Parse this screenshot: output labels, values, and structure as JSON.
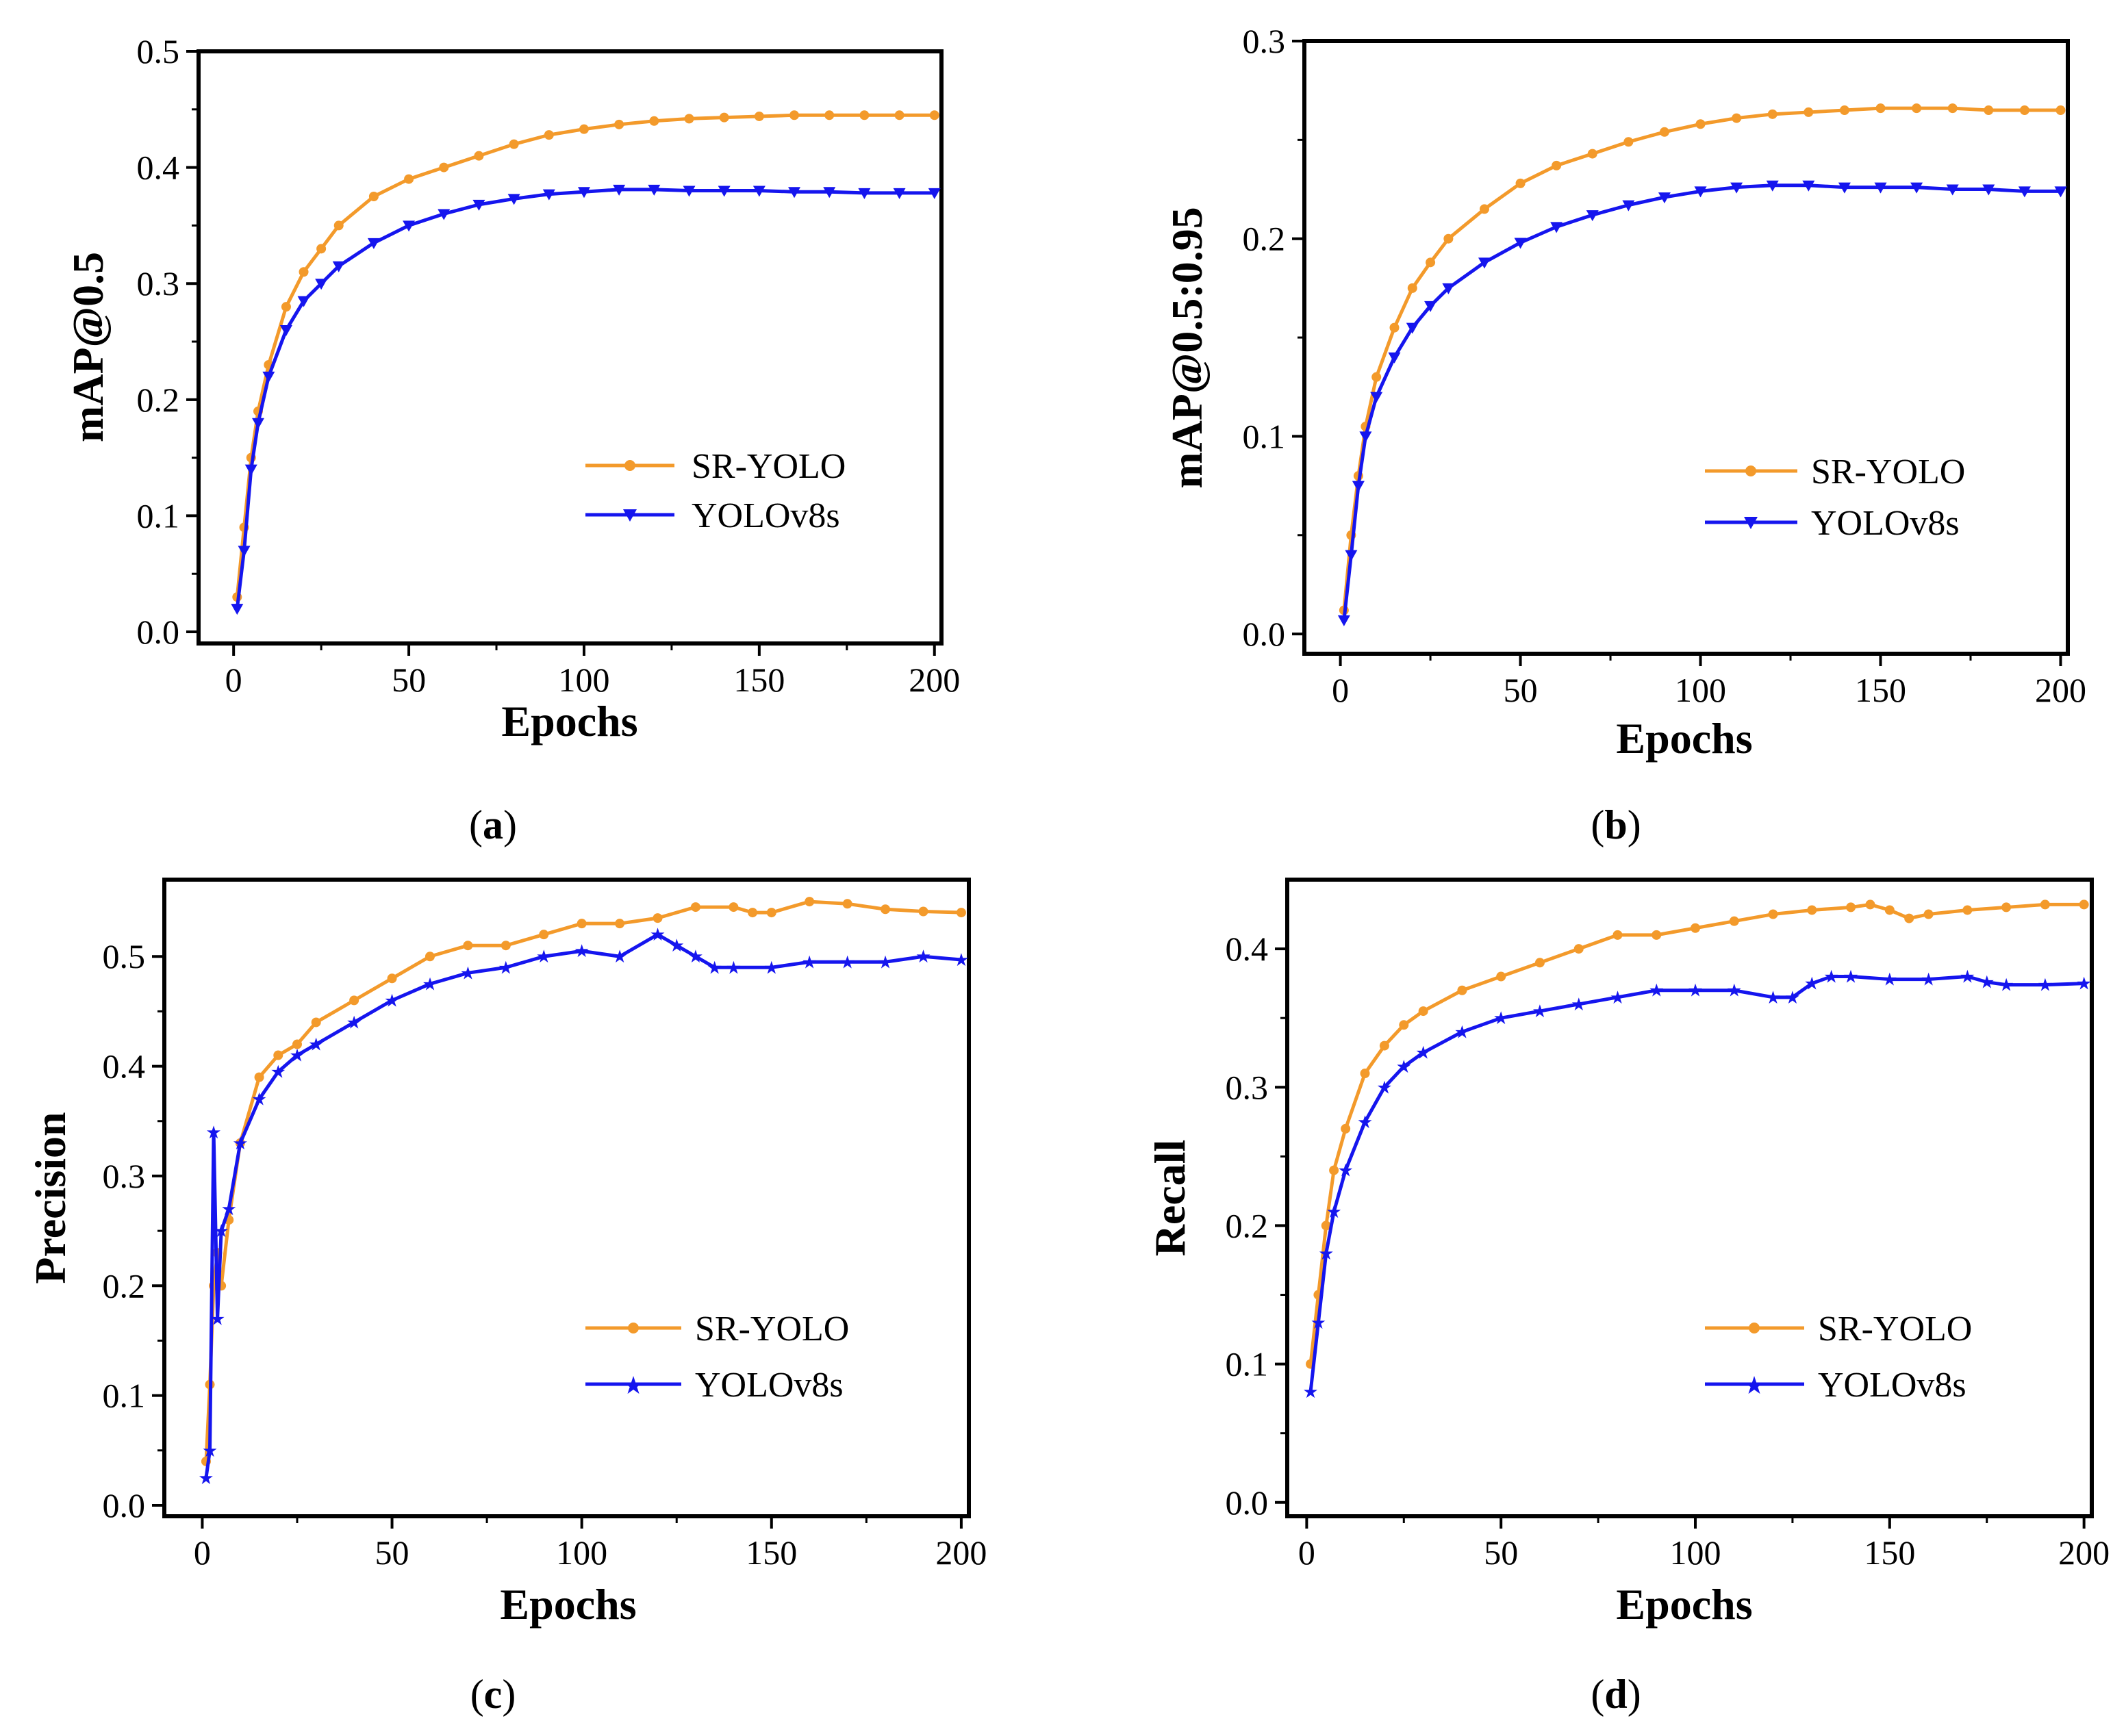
{
  "figure": {
    "panels": [
      "a",
      "b",
      "c",
      "d"
    ]
  },
  "colors": {
    "sr_yolo": "#f39a2b",
    "yolov8s": "#1515ee",
    "early_green": "#2a8a2a"
  },
  "chart_data": [
    {
      "id": "a",
      "type": "line",
      "panel_label": "a",
      "title": "",
      "xlabel": "Epochs",
      "ylabel": "mAP@0.5",
      "xlim": [
        -10,
        202
      ],
      "ylim": [
        -0.01,
        0.5
      ],
      "xticks": [
        0,
        50,
        100,
        150,
        200
      ],
      "xtick_labels": [
        "0",
        "50",
        "100",
        "150",
        "200"
      ],
      "yticks": [
        0.0,
        0.1,
        0.2,
        0.3,
        0.4,
        0.5
      ],
      "ytick_labels": [
        "0.0",
        "0.1",
        "0.2",
        "0.3",
        "0.4",
        "0.5"
      ],
      "legend": [
        "SR-YOLO",
        "YOLOv8s"
      ],
      "legend_position": "center-right",
      "series": [
        {
          "name": "SR-YOLO",
          "marker": "circle",
          "x": [
            1,
            3,
            5,
            7,
            10,
            15,
            20,
            25,
            30,
            40,
            50,
            60,
            70,
            80,
            90,
            100,
            110,
            120,
            130,
            140,
            150,
            160,
            170,
            180,
            190,
            200
          ],
          "y": [
            0.03,
            0.09,
            0.15,
            0.19,
            0.23,
            0.28,
            0.31,
            0.33,
            0.35,
            0.375,
            0.39,
            0.4,
            0.41,
            0.42,
            0.428,
            0.433,
            0.437,
            0.44,
            0.442,
            0.443,
            0.444,
            0.445,
            0.445,
            0.445,
            0.445,
            0.445
          ]
        },
        {
          "name": "YOLOv8s",
          "marker": "triangle-down",
          "x": [
            1,
            3,
            5,
            7,
            10,
            15,
            20,
            25,
            30,
            40,
            50,
            60,
            70,
            80,
            90,
            100,
            110,
            120,
            130,
            140,
            150,
            160,
            170,
            180,
            190,
            200
          ],
          "y": [
            0.02,
            0.07,
            0.14,
            0.18,
            0.22,
            0.26,
            0.285,
            0.3,
            0.315,
            0.335,
            0.35,
            0.36,
            0.368,
            0.373,
            0.377,
            0.379,
            0.381,
            0.381,
            0.38,
            0.38,
            0.38,
            0.379,
            0.379,
            0.378,
            0.378,
            0.378
          ]
        }
      ]
    },
    {
      "id": "b",
      "type": "line",
      "panel_label": "b",
      "title": "",
      "xlabel": "Epochs",
      "ylabel": "mAP@0.5:0.95",
      "xlim": [
        -10,
        202
      ],
      "ylim": [
        -0.01,
        0.3
      ],
      "xticks": [
        0,
        50,
        100,
        150,
        200
      ],
      "xtick_labels": [
        "0",
        "50",
        "100",
        "150",
        "200"
      ],
      "yticks": [
        0.0,
        0.1,
        0.2,
        0.3
      ],
      "ytick_labels": [
        "0.0",
        "0.1",
        "0.2",
        "0.3"
      ],
      "legend": [
        "SR-YOLO",
        "YOLOv8s"
      ],
      "legend_position": "center-right",
      "series": [
        {
          "name": "SR-YOLO",
          "marker": "circle",
          "x": [
            1,
            3,
            5,
            7,
            10,
            15,
            20,
            25,
            30,
            40,
            50,
            60,
            70,
            80,
            90,
            100,
            110,
            120,
            130,
            140,
            150,
            160,
            170,
            180,
            190,
            200
          ],
          "y": [
            0.012,
            0.05,
            0.08,
            0.105,
            0.13,
            0.155,
            0.175,
            0.188,
            0.2,
            0.215,
            0.228,
            0.237,
            0.243,
            0.249,
            0.254,
            0.258,
            0.261,
            0.263,
            0.264,
            0.265,
            0.266,
            0.266,
            0.266,
            0.265,
            0.265,
            0.265
          ]
        },
        {
          "name": "YOLOv8s",
          "marker": "triangle-down",
          "x": [
            1,
            3,
            5,
            7,
            10,
            15,
            20,
            25,
            30,
            40,
            50,
            60,
            70,
            80,
            90,
            100,
            110,
            120,
            130,
            140,
            150,
            160,
            170,
            180,
            190,
            200
          ],
          "y": [
            0.007,
            0.04,
            0.075,
            0.1,
            0.12,
            0.14,
            0.155,
            0.166,
            0.175,
            0.188,
            0.198,
            0.206,
            0.212,
            0.217,
            0.221,
            0.224,
            0.226,
            0.227,
            0.227,
            0.226,
            0.226,
            0.226,
            0.225,
            0.225,
            0.224,
            0.224
          ]
        }
      ]
    },
    {
      "id": "c",
      "type": "line",
      "panel_label": "c",
      "title": "",
      "xlabel": "Epochs",
      "ylabel": "Precision",
      "xlim": [
        -10,
        202
      ],
      "ylim": [
        -0.01,
        0.57
      ],
      "xticks": [
        0,
        50,
        100,
        150,
        200
      ],
      "xtick_labels": [
        "0",
        "50",
        "100",
        "150",
        "200"
      ],
      "yticks": [
        0.0,
        0.1,
        0.2,
        0.3,
        0.4,
        0.5
      ],
      "ytick_labels": [
        "0.0",
        "0.1",
        "0.2",
        "0.3",
        "0.4",
        "0.5"
      ],
      "legend": [
        "SR-YOLO",
        "YOLOv8s"
      ],
      "legend_position": "lower-right",
      "series": [
        {
          "name": "SR-YOLO",
          "marker": "circle",
          "x": [
            1,
            2,
            3,
            4,
            5,
            7,
            10,
            15,
            20,
            25,
            30,
            40,
            50,
            60,
            70,
            80,
            90,
            100,
            110,
            120,
            130,
            140,
            145,
            150,
            160,
            170,
            180,
            190,
            200
          ],
          "y": [
            0.04,
            0.11,
            0.2,
            0.23,
            0.2,
            0.26,
            0.33,
            0.39,
            0.41,
            0.42,
            0.44,
            0.46,
            0.48,
            0.5,
            0.51,
            0.51,
            0.52,
            0.53,
            0.53,
            0.535,
            0.545,
            0.545,
            0.54,
            0.54,
            0.55,
            0.548,
            0.543,
            0.541,
            0.54
          ]
        },
        {
          "name": "YOLOv8s",
          "marker": "star",
          "x": [
            1,
            2,
            3,
            4,
            5,
            7,
            10,
            15,
            20,
            25,
            30,
            40,
            50,
            60,
            70,
            80,
            90,
            100,
            110,
            120,
            125,
            130,
            135,
            140,
            150,
            160,
            170,
            180,
            190,
            200
          ],
          "y": [
            0.025,
            0.05,
            0.34,
            0.17,
            0.25,
            0.27,
            0.33,
            0.37,
            0.395,
            0.41,
            0.42,
            0.44,
            0.46,
            0.475,
            0.485,
            0.49,
            0.5,
            0.505,
            0.5,
            0.52,
            0.51,
            0.5,
            0.49,
            0.49,
            0.49,
            0.495,
            0.495,
            0.495,
            0.5,
            0.497
          ]
        }
      ]
    },
    {
      "id": "d",
      "type": "line",
      "panel_label": "d",
      "title": "",
      "xlabel": "Epochs",
      "ylabel": "Recall",
      "xlim": [
        -5,
        202
      ],
      "ylim": [
        -0.01,
        0.45
      ],
      "xticks": [
        0,
        50,
        100,
        150,
        200
      ],
      "xtick_labels": [
        "0",
        "50",
        "100",
        "150",
        "200"
      ],
      "yticks": [
        0.0,
        0.1,
        0.2,
        0.3,
        0.4
      ],
      "ytick_labels": [
        "0.0",
        "0.1",
        "0.2",
        "0.3",
        "0.4"
      ],
      "legend": [
        "SR-YOLO",
        "YOLOv8s"
      ],
      "legend_position": "lower-right",
      "series": [
        {
          "name": "SR-YOLO",
          "marker": "circle",
          "x": [
            1,
            3,
            5,
            7,
            10,
            15,
            20,
            25,
            30,
            40,
            50,
            60,
            70,
            80,
            90,
            100,
            110,
            120,
            130,
            140,
            145,
            150,
            155,
            160,
            170,
            180,
            190,
            200
          ],
          "y": [
            0.1,
            0.15,
            0.2,
            0.24,
            0.27,
            0.31,
            0.33,
            0.345,
            0.355,
            0.37,
            0.38,
            0.39,
            0.4,
            0.41,
            0.41,
            0.415,
            0.42,
            0.425,
            0.428,
            0.43,
            0.432,
            0.428,
            0.422,
            0.425,
            0.428,
            0.43,
            0.432,
            0.432
          ]
        },
        {
          "name": "YOLOv8s",
          "marker": "star",
          "x": [
            1,
            3,
            5,
            7,
            10,
            15,
            20,
            25,
            30,
            40,
            50,
            60,
            70,
            80,
            90,
            100,
            110,
            120,
            125,
            130,
            135,
            140,
            150,
            160,
            170,
            175,
            180,
            190,
            200
          ],
          "y": [
            0.08,
            0.13,
            0.18,
            0.21,
            0.24,
            0.275,
            0.3,
            0.315,
            0.325,
            0.34,
            0.35,
            0.355,
            0.36,
            0.365,
            0.37,
            0.37,
            0.37,
            0.365,
            0.365,
            0.375,
            0.38,
            0.38,
            0.378,
            0.378,
            0.38,
            0.376,
            0.374,
            0.374,
            0.375
          ]
        }
      ]
    }
  ]
}
